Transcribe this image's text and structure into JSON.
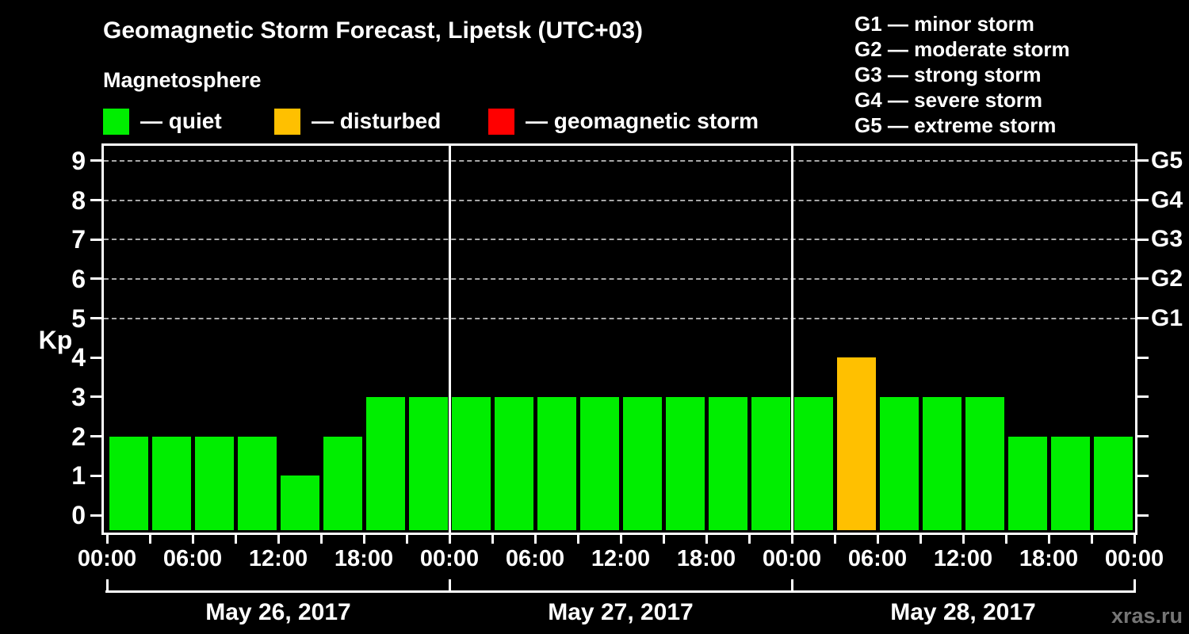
{
  "title": "Geomagnetic Storm Forecast, Lipetsk (UTC+03)",
  "subtitle": "Magnetosphere",
  "watermark": "xras.ru",
  "colors": {
    "quiet": "#00ee00",
    "disturbed": "#ffc000",
    "storm": "#ff0000",
    "grid": "#a8a8a8",
    "axis": "#ffffff",
    "background": "#000000",
    "watermark_text": "#757575"
  },
  "legend": [
    {
      "label": "— quiet",
      "color_key": "quiet"
    },
    {
      "label": "— disturbed",
      "color_key": "disturbed"
    },
    {
      "label": "— geomagnetic storm",
      "color_key": "storm"
    }
  ],
  "g_scale_legend": [
    {
      "label": "G1 — minor storm"
    },
    {
      "label": "G2 — moderate storm"
    },
    {
      "label": "G3 — strong storm"
    },
    {
      "label": "G4 — severe storm"
    },
    {
      "label": "G5 — extreme storm"
    }
  ],
  "chart_data": {
    "type": "bar",
    "title": "Geomagnetic Storm Forecast, Lipetsk (UTC+03)",
    "ylabel": "Kp",
    "ylim": [
      0,
      9
    ],
    "y_ticks": [
      0,
      1,
      2,
      3,
      4,
      5,
      6,
      7,
      8,
      9
    ],
    "gridline_levels": [
      5,
      6,
      7,
      8,
      9
    ],
    "right_axis_labels": [
      {
        "kp": 5,
        "label": "G1"
      },
      {
        "kp": 6,
        "label": "G2"
      },
      {
        "kp": 7,
        "label": "G3"
      },
      {
        "kp": 8,
        "label": "G4"
      },
      {
        "kp": 9,
        "label": "G5"
      }
    ],
    "hours_per_bar": 3,
    "x_tick_labels": [
      "00:00",
      "06:00",
      "12:00",
      "18:00",
      "00:00",
      "06:00",
      "12:00",
      "18:00",
      "00:00",
      "06:00",
      "12:00",
      "18:00",
      "00:00"
    ],
    "days": [
      {
        "date": "May 26, 2017",
        "values": [
          2,
          2,
          2,
          2,
          1,
          2,
          3,
          3
        ]
      },
      {
        "date": "May 27, 2017",
        "values": [
          3,
          3,
          3,
          3,
          3,
          3,
          3,
          3
        ]
      },
      {
        "date": "May 28, 2017",
        "values": [
          3,
          4,
          3,
          3,
          3,
          2,
          2,
          2
        ]
      }
    ],
    "color_rules": {
      "quiet_max": 3,
      "disturbed_max": 4
    },
    "legend_position": "top-left",
    "grid": "dashed horizontal at Kp 5-9"
  }
}
